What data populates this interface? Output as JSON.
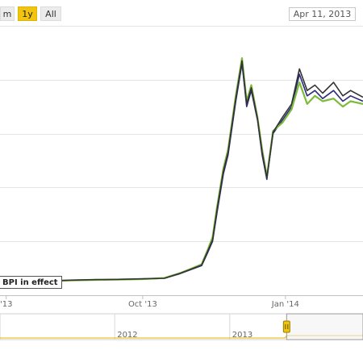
{
  "range_selector": {
    "buttons": [
      {
        "label": "m",
        "active": false
      },
      {
        "label": "1y",
        "active": true
      },
      {
        "label": "All",
        "active": false
      }
    ]
  },
  "date_input": {
    "value": "Apr 11, 2013"
  },
  "flag": {
    "text": "BPI in effect"
  },
  "colors": {
    "series_1": "#2b2b7a",
    "series_2": "#7dbb3a",
    "series_3": "#333333",
    "navigator": "#e6b400",
    "active_button": "#f1c40f"
  },
  "chart_data": {
    "type": "line",
    "title": "",
    "xlabel": "",
    "ylabel": "",
    "x_ticks": [
      "'13",
      "Oct '13",
      "Jan '14"
    ],
    "x_domain": [
      "2013-07-01",
      "2014-02-20"
    ],
    "series": [
      {
        "color": "#2b2b7a",
        "x": [
          "2013-07-01",
          "2013-07-15",
          "2013-08-01",
          "2013-08-15",
          "2013-09-01",
          "2013-09-15",
          "2013-10-01",
          "2013-10-15",
          "2013-10-25",
          "2013-11-01",
          "2013-11-08",
          "2013-11-12",
          "2013-11-15",
          "2013-11-18",
          "2013-11-22",
          "2013-11-25",
          "2013-11-30",
          "2013-12-04",
          "2013-12-07",
          "2013-12-10",
          "2013-12-14",
          "2013-12-17",
          "2013-12-20",
          "2013-12-24",
          "2013-12-30",
          "2014-01-05",
          "2014-01-10",
          "2014-01-15",
          "2014-01-20",
          "2014-01-25",
          "2014-02-01",
          "2014-02-07",
          "2014-02-12",
          "2014-02-20"
        ],
        "values": [
          45,
          48,
          52,
          55,
          57,
          58,
          60,
          63,
          80,
          95,
          110,
          160,
          200,
          310,
          450,
          520,
          720,
          860,
          700,
          760,
          650,
          520,
          430,
          600,
          650,
          700,
          820,
          740,
          760,
          730,
          760,
          720,
          740,
          720
        ]
      },
      {
        "color": "#7dbb3a",
        "x": [
          "2013-07-01",
          "2013-07-15",
          "2013-08-01",
          "2013-08-15",
          "2013-09-01",
          "2013-09-15",
          "2013-10-01",
          "2013-10-15",
          "2013-10-25",
          "2013-11-01",
          "2013-11-08",
          "2013-11-12",
          "2013-11-15",
          "2013-11-18",
          "2013-11-22",
          "2013-11-25",
          "2013-11-30",
          "2013-12-04",
          "2013-12-07",
          "2013-12-10",
          "2013-12-14",
          "2013-12-17",
          "2013-12-20",
          "2013-12-24",
          "2013-12-30",
          "2014-01-05",
          "2014-01-10",
          "2014-01-15",
          "2014-01-20",
          "2014-01-25",
          "2014-02-01",
          "2014-02-07",
          "2014-02-12",
          "2014-02-20"
        ],
        "values": [
          45,
          48,
          52,
          55,
          57,
          58,
          60,
          64,
          82,
          98,
          115,
          170,
          215,
          330,
          470,
          540,
          740,
          880,
          720,
          780,
          660,
          540,
          440,
          610,
          640,
          690,
          790,
          710,
          740,
          720,
          730,
          700,
          720,
          710
        ]
      },
      {
        "color": "#333333",
        "x": [
          "2013-07-01",
          "2013-07-15",
          "2013-08-01",
          "2013-08-15",
          "2013-09-01",
          "2013-09-15",
          "2013-10-01",
          "2013-10-15",
          "2013-10-25",
          "2013-11-01",
          "2013-11-08",
          "2013-11-12",
          "2013-11-15",
          "2013-11-18",
          "2013-11-22",
          "2013-11-25",
          "2013-11-30",
          "2013-12-04",
          "2013-12-07",
          "2013-12-10",
          "2013-12-14",
          "2013-12-17",
          "2013-12-20",
          "2013-12-24",
          "2013-12-30",
          "2014-01-05",
          "2014-01-10",
          "2014-01-15",
          "2014-01-20",
          "2014-01-25",
          "2014-02-01",
          "2014-02-07",
          "2014-02-12",
          "2014-02-20"
        ],
        "values": [
          46,
          49,
          53,
          56,
          58,
          59,
          61,
          63,
          81,
          96,
          112,
          165,
          205,
          320,
          460,
          530,
          730,
          870,
          710,
          770,
          655,
          530,
          435,
          605,
          660,
          710,
          840,
          760,
          780,
          750,
          790,
          740,
          760,
          735
        ]
      }
    ],
    "ylim": [
      0,
      1000
    ],
    "grid": true,
    "navigator": {
      "x_ticks": [
        "2012",
        "2013"
      ],
      "x_domain": [
        "2011-01-01",
        "2014-03-01"
      ],
      "selected_range": [
        "2013-07-01",
        "2014-02-20"
      ]
    }
  }
}
